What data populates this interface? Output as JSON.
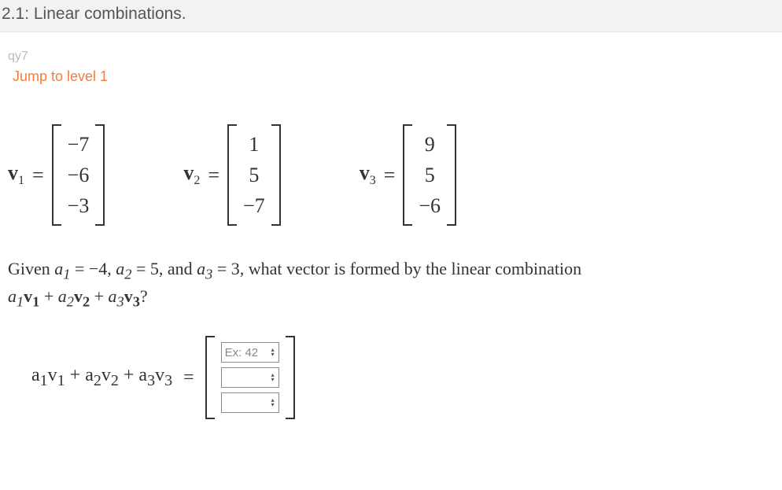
{
  "header": {
    "title": "2.1: Linear combinations."
  },
  "meta": {
    "code": "qy7"
  },
  "jump": {
    "label": "Jump to level 1"
  },
  "vectors": {
    "v1": {
      "name": "v",
      "sub": "1",
      "entries": [
        "−7",
        "−6",
        "−3"
      ]
    },
    "v2": {
      "name": "v",
      "sub": "2",
      "entries": [
        "1",
        "5",
        "−7"
      ]
    },
    "v3": {
      "name": "v",
      "sub": "3",
      "entries": [
        "9",
        "5",
        "−6"
      ]
    }
  },
  "question": {
    "prefix": "Given ",
    "a1_label": "a",
    "a1_sub": "1",
    "a1_val": "−4",
    "a2_label": "a",
    "a2_sub": "2",
    "a2_val": "5",
    "and": ", and ",
    "a3_label": "a",
    "a3_sub": "3",
    "a3_val": "3",
    "tail": ", what vector is formed by the linear combination",
    "expr_a1": "a",
    "expr_v1": "v",
    "expr_a2": "a",
    "expr_v2": "v",
    "expr_a3": "a",
    "expr_v3": "v",
    "qmark": "?"
  },
  "answer": {
    "lhs_a1": "a",
    "lhs_v1": "v",
    "lhs_a2": "a",
    "lhs_v2": "v",
    "lhs_a3": "a",
    "lhs_v3": "v",
    "eq": "=",
    "inputs": [
      {
        "placeholder": "Ex: 42"
      },
      {
        "placeholder": ""
      },
      {
        "placeholder": ""
      }
    ]
  },
  "colors": {
    "header_bg": "#f2f2f2",
    "link": "#f47c3c",
    "muted": "#bbbbbb",
    "text": "#333333"
  }
}
